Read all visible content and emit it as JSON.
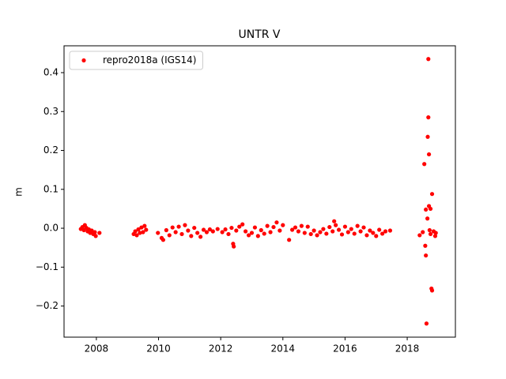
{
  "chart_data": {
    "type": "scatter",
    "title": "UNTR V",
    "ylabel": "m",
    "xlim": [
      2006.96,
      2019.55
    ],
    "xticks": [
      2008,
      2010,
      2012,
      2014,
      2016,
      2018
    ],
    "ylim": [
      -0.28,
      0.469
    ],
    "yticks": [
      {
        "value": -0.2,
        "label": "−0.2"
      },
      {
        "value": -0.1,
        "label": "−0.1"
      },
      {
        "value": 0,
        "label": "0.0"
      },
      0.1,
      0.2,
      0.3,
      0.4
    ],
    "legend": "upper left",
    "series": [
      {
        "name": "repro2018a (IGS14)",
        "color": "#ff0000",
        "x": [
          2007.5,
          2007.55,
          2007.6,
          2007.63,
          2007.68,
          2007.72,
          2007.76,
          2007.8,
          2007.85,
          2007.9,
          2007.95,
          2007.98,
          2008.1,
          2009.2,
          2009.25,
          2009.3,
          2009.35,
          2009.4,
          2009.45,
          2009.5,
          2009.55,
          2009.6,
          2009.98,
          2010.1,
          2010.15,
          2010.25,
          2010.35,
          2010.45,
          2010.55,
          2010.65,
          2010.75,
          2010.85,
          2010.95,
          2011.05,
          2011.15,
          2011.25,
          2011.35,
          2011.45,
          2011.55,
          2011.65,
          2011.75,
          2011.9,
          2012.05,
          2012.15,
          2012.25,
          2012.35,
          2012.4,
          2012.42,
          2012.5,
          2012.6,
          2012.7,
          2012.8,
          2012.9,
          2013.0,
          2013.1,
          2013.2,
          2013.3,
          2013.4,
          2013.5,
          2013.6,
          2013.7,
          2013.8,
          2013.9,
          2014.0,
          2014.2,
          2014.3,
          2014.4,
          2014.5,
          2014.6,
          2014.7,
          2014.8,
          2014.9,
          2015.0,
          2015.1,
          2015.2,
          2015.3,
          2015.4,
          2015.5,
          2015.6,
          2015.65,
          2015.7,
          2015.8,
          2015.9,
          2016.0,
          2016.1,
          2016.2,
          2016.3,
          2016.4,
          2016.5,
          2016.6,
          2016.7,
          2016.8,
          2016.9,
          2017.0,
          2017.1,
          2017.2,
          2017.3,
          2017.45,
          2018.4,
          2018.5,
          2018.55,
          2018.58,
          2018.6,
          2018.6,
          2018.62,
          2018.65,
          2018.66,
          2018.68,
          2018.68,
          2018.7,
          2018.7,
          2018.72,
          2018.75,
          2018.75,
          2018.78,
          2018.8,
          2018.8,
          2018.85,
          2018.9,
          2018.92
        ],
        "values": [
          -0.002,
          0.003,
          -0.005,
          0.008,
          0.001,
          -0.008,
          -0.003,
          -0.012,
          -0.006,
          -0.015,
          -0.01,
          -0.02,
          -0.012,
          -0.015,
          -0.008,
          -0.018,
          -0.003,
          -0.012,
          0.002,
          -0.01,
          0.006,
          -0.004,
          -0.012,
          -0.025,
          -0.03,
          -0.005,
          -0.018,
          0.002,
          -0.01,
          0.004,
          -0.015,
          0.008,
          -0.006,
          -0.02,
          0.001,
          -0.012,
          -0.022,
          -0.004,
          -0.01,
          -0.003,
          -0.008,
          -0.002,
          -0.01,
          -0.003,
          -0.015,
          0.001,
          -0.04,
          -0.047,
          -0.006,
          0.004,
          0.01,
          -0.008,
          -0.018,
          -0.012,
          0.002,
          -0.02,
          -0.005,
          -0.014,
          0.006,
          -0.01,
          0.003,
          0.015,
          -0.006,
          0.008,
          -0.03,
          -0.004,
          0.002,
          -0.008,
          0.006,
          -0.012,
          0.004,
          -0.015,
          -0.006,
          -0.018,
          -0.01,
          -0.002,
          -0.014,
          0.003,
          -0.008,
          0.018,
          0.008,
          -0.004,
          -0.016,
          0.004,
          -0.01,
          -0.002,
          -0.014,
          0.006,
          -0.008,
          0.002,
          -0.018,
          -0.006,
          -0.012,
          -0.02,
          -0.004,
          -0.014,
          -0.008,
          -0.006,
          -0.018,
          -0.01,
          0.165,
          -0.045,
          -0.07,
          0.048,
          -0.245,
          0.025,
          0.235,
          0.435,
          0.285,
          0.19,
          0.057,
          -0.005,
          0.05,
          -0.015,
          -0.155,
          -0.16,
          0.088,
          -0.008,
          -0.02,
          -0.012
        ]
      }
    ]
  }
}
